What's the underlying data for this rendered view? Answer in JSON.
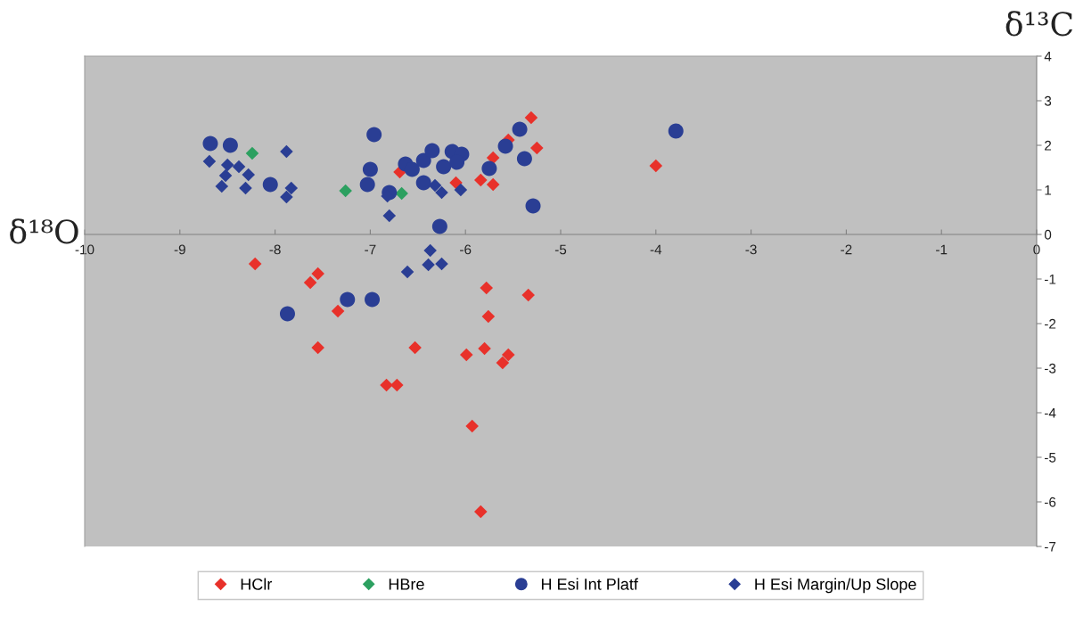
{
  "chart_data": {
    "type": "scatter",
    "xlabel": "δ¹⁸O",
    "ylabel": "δ¹³C",
    "xlim": [
      -10,
      0
    ],
    "xticks": [
      -10,
      -9,
      -8,
      -7,
      -6,
      -5,
      -4,
      -3,
      -2,
      -1,
      0
    ],
    "ylim": [
      -7,
      4
    ],
    "yticks": [
      -7,
      -6,
      -5,
      -4,
      -3,
      -2,
      -1,
      0,
      1,
      2,
      3,
      4
    ],
    "grid": false,
    "legend": "bottom",
    "series": [
      {
        "name": "HClr",
        "color": "#e8312a",
        "marker": "diamond",
        "x": [
          -8.21,
          -7.55,
          -7.63,
          -7.34,
          -7.55,
          -6.69,
          -6.83,
          -6.72,
          -6.53,
          -6.1,
          -5.84,
          -5.71,
          -5.71,
          -5.55,
          -5.31,
          -5.25,
          -5.78,
          -5.76,
          -5.8,
          -5.99,
          -5.55,
          -5.61,
          -5.34,
          -5.93,
          -5.84,
          -4.0
        ],
        "values": [
          -0.66,
          -0.88,
          -1.08,
          -1.72,
          -2.54,
          1.4,
          -3.38,
          -3.38,
          -2.54,
          1.16,
          1.22,
          1.72,
          1.12,
          2.12,
          2.62,
          1.94,
          -1.2,
          -1.84,
          -2.56,
          -2.7,
          -2.7,
          -2.88,
          -1.36,
          -4.3,
          -6.22,
          1.54
        ]
      },
      {
        "name": "HBre",
        "color": "#2ca060",
        "marker": "diamond",
        "x": [
          -8.24,
          -7.26,
          -6.67
        ],
        "values": [
          1.82,
          0.98,
          0.92
        ]
      },
      {
        "name": "H Esi Int Platf",
        "color": "#2a3e94",
        "marker": "circle",
        "x": [
          -8.68,
          -8.47,
          -8.05,
          -6.96,
          -7.0,
          -7.03,
          -6.8,
          -6.63,
          -6.56,
          -6.44,
          -6.35,
          -6.44,
          -6.23,
          -6.14,
          -6.04,
          -6.09,
          -6.27,
          -5.75,
          -5.58,
          -5.43,
          -5.38,
          -5.29,
          -3.79,
          -7.87,
          -7.24,
          -6.98
        ],
        "values": [
          2.04,
          2.0,
          1.12,
          2.24,
          1.46,
          1.12,
          0.94,
          1.58,
          1.46,
          1.66,
          1.88,
          1.16,
          1.52,
          1.86,
          1.8,
          1.62,
          0.18,
          1.48,
          1.98,
          2.36,
          1.7,
          0.64,
          2.32,
          -1.78,
          -1.46,
          -1.46
        ]
      },
      {
        "name": "H Esi Margin/Up Slope",
        "color": "#2a3e94",
        "marker": "diamond",
        "x": [
          -8.69,
          -8.5,
          -8.38,
          -8.52,
          -8.28,
          -8.56,
          -8.31,
          -7.88,
          -7.83,
          -7.88,
          -6.82,
          -6.8,
          -6.32,
          -6.25,
          -6.05,
          -6.37,
          -6.61,
          -6.39,
          -6.25
        ],
        "values": [
          1.64,
          1.56,
          1.52,
          1.32,
          1.34,
          1.08,
          1.04,
          1.86,
          1.04,
          0.84,
          0.86,
          0.42,
          1.1,
          0.94,
          1.0,
          -0.36,
          -0.84,
          -0.68,
          -0.66
        ]
      }
    ]
  }
}
